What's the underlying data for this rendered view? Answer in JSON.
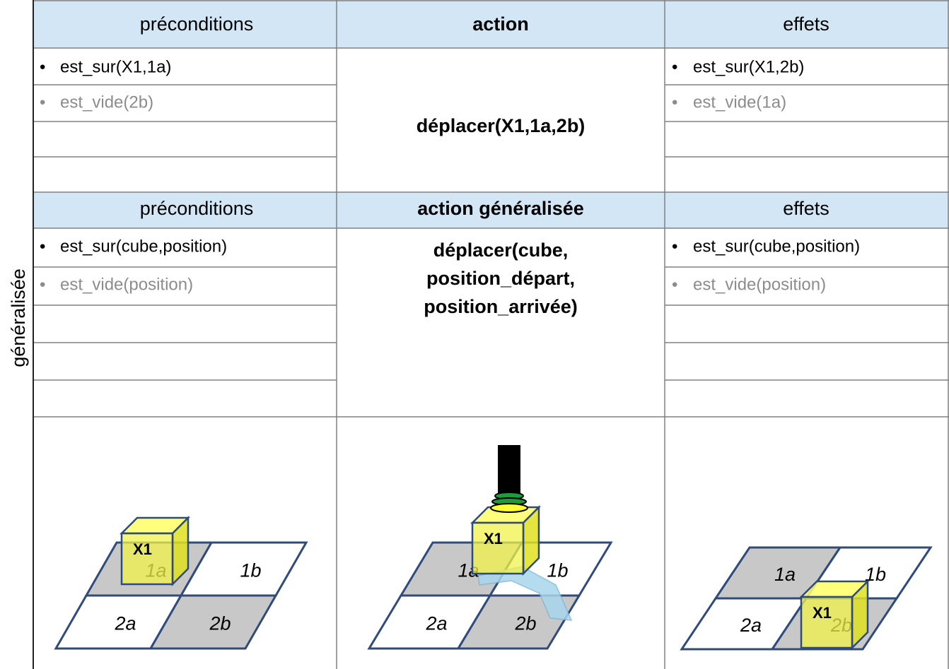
{
  "side_label": "généralisée",
  "block1": {
    "headers": [
      "préconditions",
      "action",
      "effets"
    ],
    "preconditions": [
      "est_sur(X1,1a)",
      "est_vide(2b)"
    ],
    "action": "déplacer(X1,1a,2b)",
    "effects": [
      "est_sur(X1,2b)",
      "est_vide(1a)"
    ]
  },
  "block2": {
    "headers": [
      "préconditions",
      "action généralisée",
      "effets"
    ],
    "preconditions": [
      "est_sur(cube,position)",
      "est_vide(position)"
    ],
    "action": [
      "déplacer(cube,",
      "position_départ,",
      "position_arrivée)"
    ],
    "effects": [
      "est_sur(cube,position)",
      "est_vide(position)"
    ]
  },
  "diagrams": [
    {
      "cells": [
        "1a",
        "1b",
        "2a",
        "2b"
      ],
      "cube": "X1"
    },
    {
      "cells": [
        "1a",
        "1b",
        "2a",
        "2b"
      ],
      "cube": "X1"
    },
    {
      "cells": [
        "1a",
        "1b",
        "2a",
        "2b"
      ],
      "cube": "X1"
    }
  ]
}
